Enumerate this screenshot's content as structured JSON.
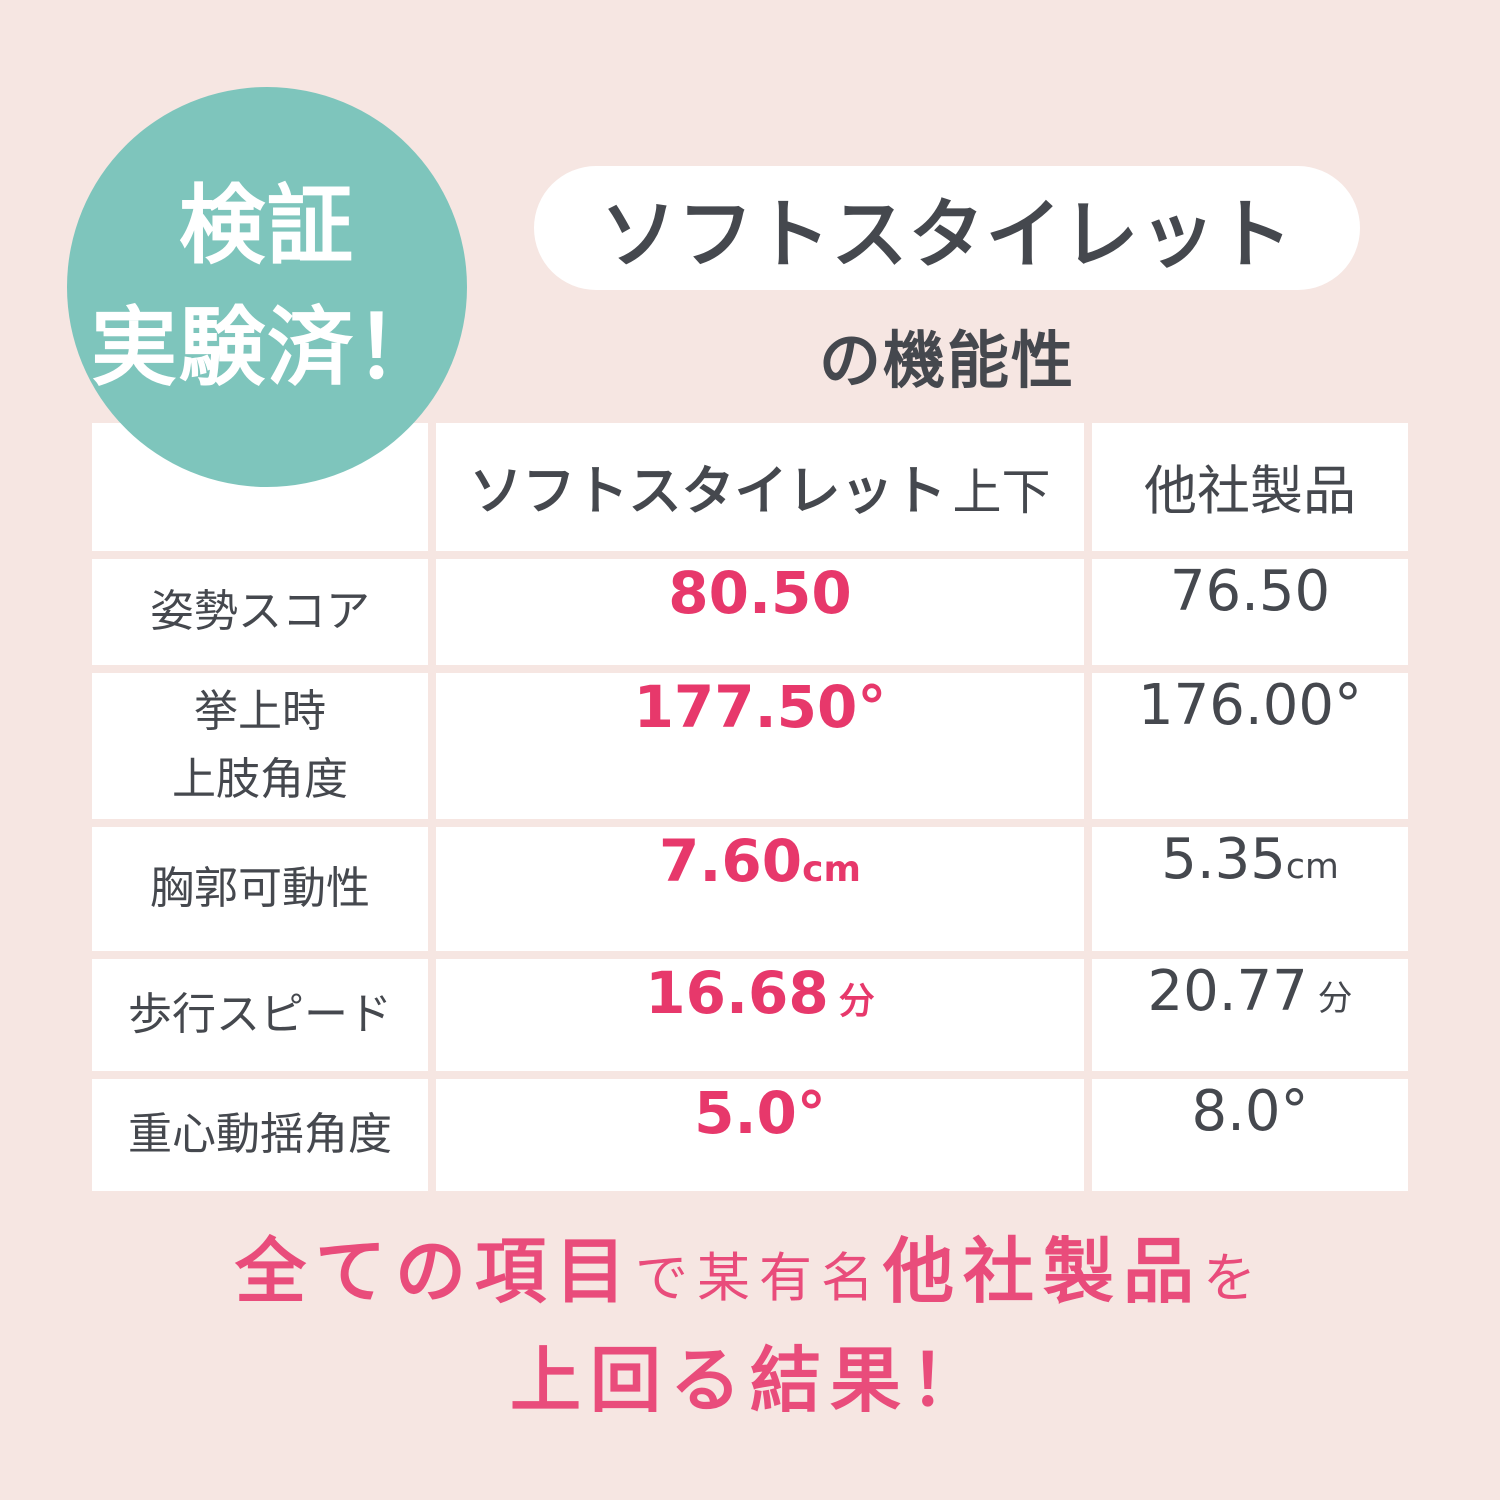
{
  "badge": {
    "line1": "検証",
    "line2": "実験済！"
  },
  "header": {
    "title": "ソフトスタイレット",
    "subtitle": "の機能性"
  },
  "table": {
    "product_header_main": "ソフトスタイレット",
    "product_header_suffix": "上下",
    "competitor_header": "他社製品",
    "rows": [
      {
        "label_lines": [
          "姿勢スコア"
        ],
        "ours_value": "80.50",
        "ours_unit": "",
        "theirs_value": "76.50",
        "theirs_unit": "",
        "unit_style": "none"
      },
      {
        "label_lines": [
          "挙上時",
          "上肢角度"
        ],
        "ours_value": "177.50",
        "ours_unit": "°",
        "theirs_value": "176.00",
        "theirs_unit": "°",
        "unit_style": "deg"
      },
      {
        "label_lines": [
          "胸郭可動性"
        ],
        "ours_value": "7.60",
        "ours_unit": "cm",
        "theirs_value": "5.35",
        "theirs_unit": "cm",
        "unit_style": "small"
      },
      {
        "label_lines": [
          "歩行スピード"
        ],
        "ours_value": "16.68",
        "ours_unit": "分",
        "theirs_value": "20.77",
        "theirs_unit": "分",
        "unit_style": "small-gap"
      },
      {
        "label_lines": [
          "重心動揺角度"
        ],
        "ours_value": "5.0",
        "ours_unit": "°",
        "theirs_value": "8.0",
        "theirs_unit": "°",
        "unit_style": "deg"
      }
    ]
  },
  "footer": {
    "line1": [
      {
        "text": "全ての項目",
        "size": "big"
      },
      {
        "text": "で某有名",
        "size": "small"
      },
      {
        "text": "他社製品",
        "size": "big"
      },
      {
        "text": "を",
        "size": "small"
      }
    ],
    "line2": [
      {
        "text": "上回る結果！",
        "size": "big"
      }
    ]
  },
  "colors": {
    "background": "#F6E6E2",
    "badge_teal": "#7EC5BC",
    "cell_white": "#FFFFFF",
    "text_dark": "#45484E",
    "accent_pink_values": "#E7386B",
    "accent_pink_footer": "#E94C7B"
  },
  "chart_data": {
    "type": "table",
    "title": "ソフトスタイレットの機能性",
    "columns": [
      "",
      "ソフトスタイレット上下",
      "他社製品"
    ],
    "rows": [
      [
        "姿勢スコア",
        "80.50",
        "76.50"
      ],
      [
        "挙上時上肢角度",
        "177.50°",
        "176.00°"
      ],
      [
        "胸郭可動性",
        "7.60cm",
        "5.35cm"
      ],
      [
        "歩行スピード",
        "16.68分",
        "20.77分"
      ],
      [
        "重心動揺角度",
        "5.0°",
        "8.0°"
      ]
    ],
    "highlight_column": "ソフトスタイレット上下",
    "annotation": "全ての項目で某有名他社製品を上回る結果！"
  }
}
